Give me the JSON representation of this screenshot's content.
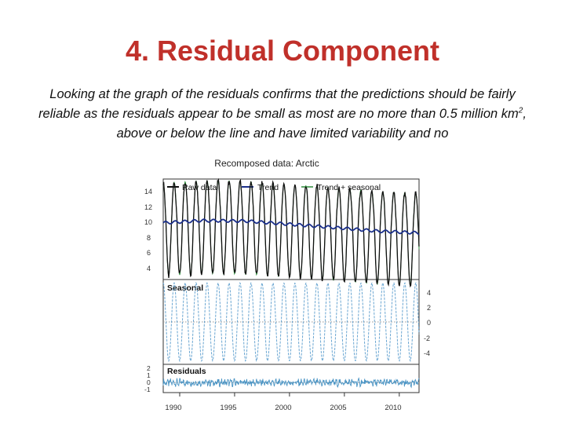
{
  "slide": {
    "title": "4. Residual Component",
    "text_part1": "Looking at the graph of the residuals confirms that the predictions should be fairly reliable as the residuals appear to be small as most are no more than 0.5 million km",
    "text_sup": "2",
    "text_part2": ", above or below the line and have limited variability and no"
  },
  "chart_data": {
    "type": "line",
    "title": "Recomposed data: Arctic",
    "x": {
      "start": 1988.5,
      "end": 2011.8,
      "ticks": [
        1990,
        1995,
        2000,
        2005,
        2010
      ]
    },
    "legend": [
      "Raw data",
      "Trend",
      "Trend + seasonal"
    ],
    "panels": [
      {
        "name": "Raw data / Trend",
        "yticks": [
          "14",
          "12",
          "10",
          "8",
          "6",
          "4"
        ],
        "ylim": [
          3.5,
          14.5
        ],
        "series": [
          {
            "name": "Raw data",
            "color": "#111111",
            "seasonal_center": 9.9,
            "seasonal_amplitude": 5.8
          },
          {
            "name": "Trend",
            "color": "#1a2f8a",
            "trend_points": [
              [
                1988.5,
                9.7
              ],
              [
                1992,
                9.95
              ],
              [
                1996,
                9.9
              ],
              [
                2000,
                9.55
              ],
              [
                2004,
                9.2
              ],
              [
                2008,
                8.8
              ],
              [
                2011.8,
                8.6
              ]
            ]
          },
          {
            "name": "Trend + seasonal",
            "color": "#2e8b3a"
          }
        ]
      },
      {
        "name": "Seasonal",
        "label": "Seasonal",
        "yticks": [
          "4",
          "2",
          "0",
          "-2",
          "-4"
        ],
        "ylim": [
          -5,
          5
        ],
        "series": [
          {
            "name": "Seasonal",
            "color": "#6aa6d2",
            "amplitude": 4.6
          }
        ]
      },
      {
        "name": "Residuals",
        "label": "Residuals",
        "yticks": [
          "2",
          "1",
          "0",
          "-1"
        ],
        "ylim": [
          -1.2,
          2.2
        ],
        "series": [
          {
            "name": "Residuals",
            "color": "#4a94c4",
            "spread": 0.35
          }
        ]
      }
    ],
    "xtick_labels": [
      "1990",
      "1995",
      "2000",
      "2005",
      "2010"
    ]
  }
}
